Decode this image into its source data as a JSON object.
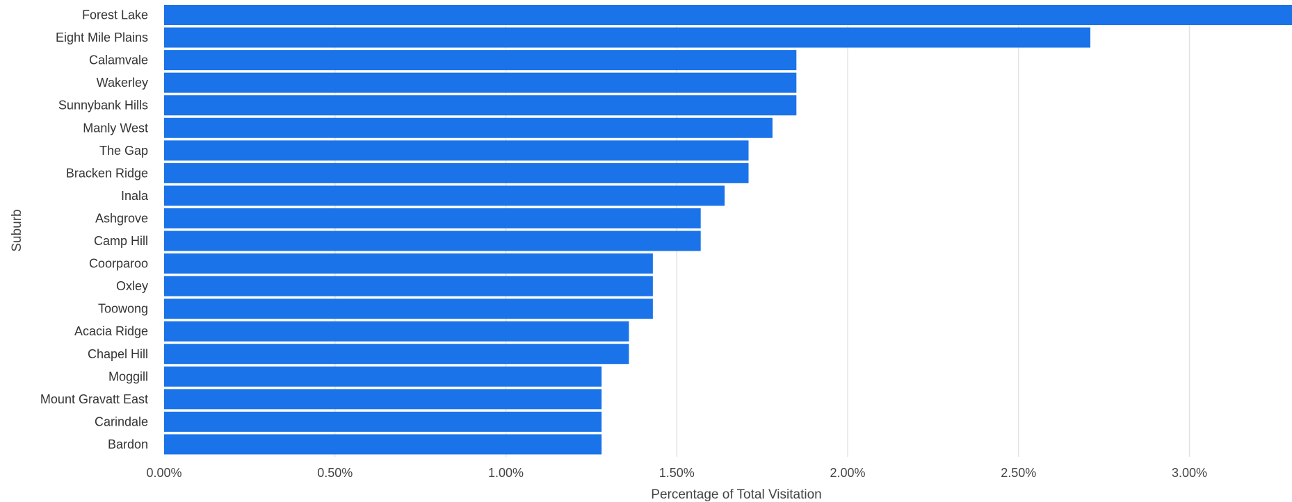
{
  "chart_data": {
    "type": "bar",
    "orientation": "horizontal",
    "xlabel": "Percentage of Total Visitation",
    "ylabel": "Suburb",
    "xlim": [
      0,
      0.033
    ],
    "xticks": [
      0,
      0.005,
      0.01,
      0.015,
      0.02,
      0.025,
      0.03
    ],
    "xtick_labels": [
      "0.00%",
      "0.50%",
      "1.00%",
      "1.50%",
      "2.00%",
      "2.50%",
      "3.00%"
    ],
    "grid": true,
    "bar_color": "#1a73e8",
    "categories": [
      "Forest Lake",
      "Eight Mile Plains",
      "Calamvale",
      "Wakerley",
      "Sunnybank Hills",
      "Manly West",
      "The Gap",
      "Bracken Ridge",
      "Inala",
      "Ashgrove",
      "Camp Hill",
      "Coorparoo",
      "Oxley",
      "Toowong",
      "Acacia Ridge",
      "Chapel Hill",
      "Moggill",
      "Mount Gravatt East",
      "Carindale",
      "Bardon"
    ],
    "values": [
      0.0335,
      0.0271,
      0.0185,
      0.0185,
      0.0185,
      0.0178,
      0.0171,
      0.0171,
      0.0164,
      0.0157,
      0.0157,
      0.0143,
      0.0143,
      0.0143,
      0.0136,
      0.0136,
      0.0128,
      0.0128,
      0.0128,
      0.0128
    ]
  }
}
